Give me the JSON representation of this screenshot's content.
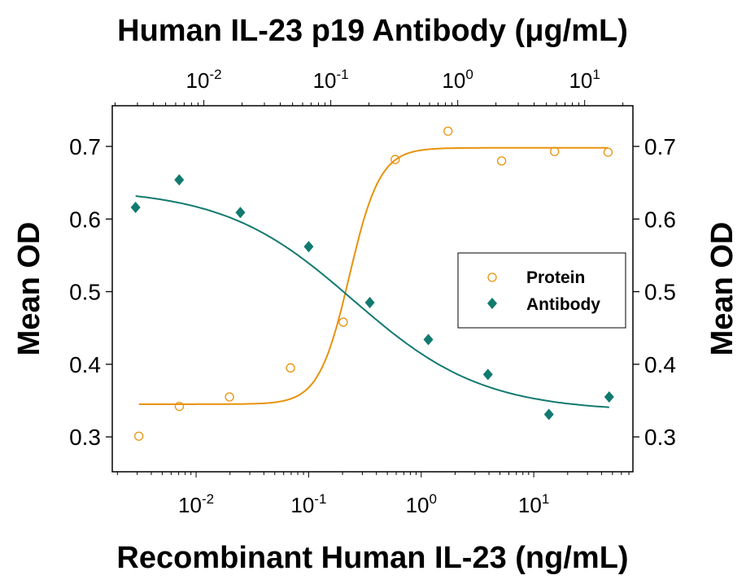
{
  "chart_data": {
    "type": "scatter",
    "title": "Human IL-23 p19 Antibody (μg/mL)",
    "xlabel": "Recombinant Human IL-23 (ng/mL)",
    "ylabel": "Mean OD",
    "y2label": "Mean OD",
    "x_scale": "log",
    "x_bottom_lim": [
      0.0018,
      76
    ],
    "x_top_lim": [
      0.0019,
      24
    ],
    "ylim": [
      0.252,
      0.756
    ],
    "y_ticks": [
      "0.3",
      "0.4",
      "0.5",
      "0.6",
      "0.7"
    ],
    "x_ticks": [
      {
        "base": "10",
        "exp": "-2"
      },
      {
        "base": "10",
        "exp": "-1"
      },
      {
        "base": "10",
        "exp": "0"
      },
      {
        "base": "10",
        "exp": "1"
      }
    ],
    "grid": false,
    "legend_position": "center-right",
    "series": [
      {
        "name": "Protein",
        "axis": "bottom",
        "marker": "open-circle",
        "color": "#E8920E",
        "x": [
          0.0031,
          0.0071,
          0.0198,
          0.069,
          0.203,
          0.587,
          1.73,
          5.18,
          15.3,
          45.7
        ],
        "y": [
          0.301,
          0.342,
          0.355,
          0.395,
          0.458,
          0.682,
          0.721,
          0.68,
          0.693,
          0.692
        ],
        "fit": {
          "bottom": 0.345,
          "top": 0.698,
          "ec50": 0.23,
          "hill": 3.2
        }
      },
      {
        "name": "Antibody",
        "axis": "top",
        "marker": "filled-diamond",
        "color": "#117A6F",
        "x": [
          0.0029,
          0.0064,
          0.0194,
          0.067,
          0.203,
          0.587,
          1.73,
          5.23,
          15.6
        ],
        "y": [
          0.616,
          0.654,
          0.609,
          0.562,
          0.485,
          0.434,
          0.386,
          0.331,
          0.355
        ],
        "fit": {
          "bottom": 0.335,
          "top": 0.642,
          "ec50": 0.15,
          "hill": -0.85
        }
      }
    ]
  }
}
